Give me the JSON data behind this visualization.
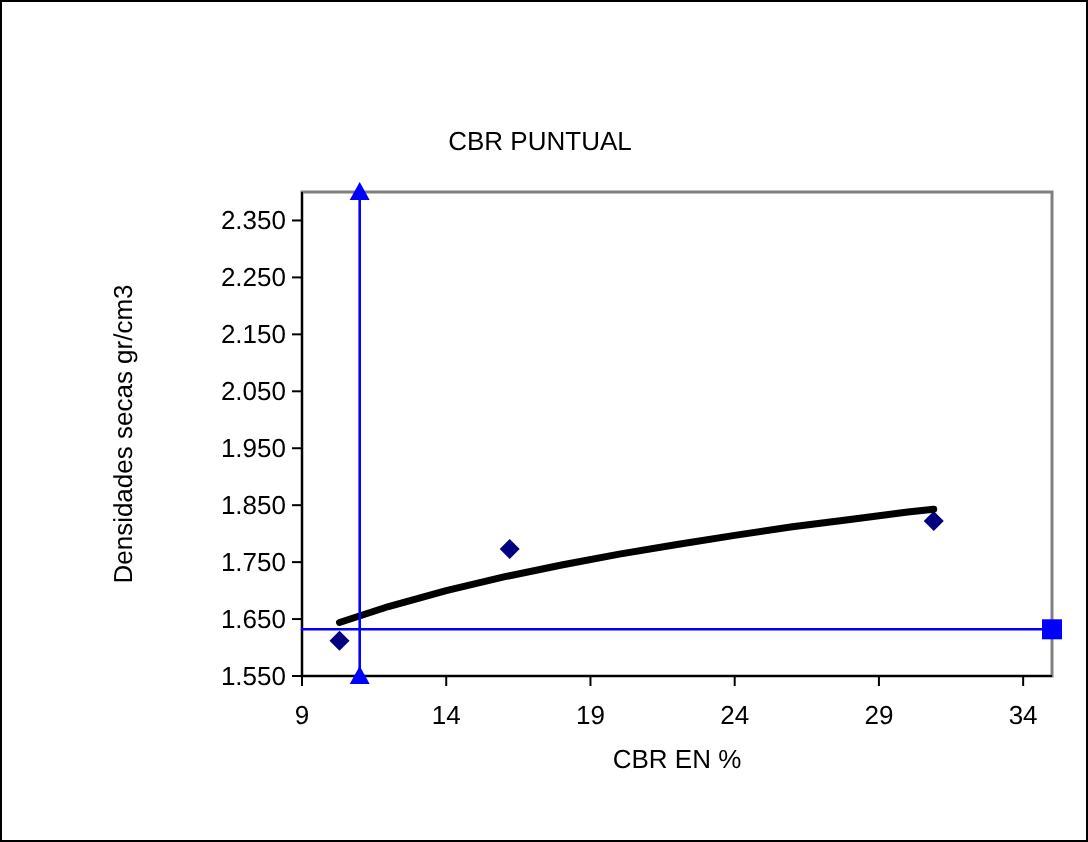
{
  "chart_data": {
    "type": "scatter",
    "title": "CBR PUNTUAL",
    "xlabel": "CBR EN %",
    "ylabel": "Densidades secas gr/cm3",
    "xlim": [
      9,
      35
    ],
    "xticks": [
      9,
      14,
      19,
      24,
      29,
      34
    ],
    "ylim": [
      1.55,
      2.4
    ],
    "yticks": [
      {
        "value": 1.55,
        "label": "1.550"
      },
      {
        "value": 1.65,
        "label": "1.650"
      },
      {
        "value": 1.75,
        "label": "1.750"
      },
      {
        "value": 1.85,
        "label": "1.850"
      },
      {
        "value": 1.95,
        "label": "1.950"
      },
      {
        "value": 2.05,
        "label": "2.050"
      },
      {
        "value": 2.15,
        "label": "2.150"
      },
      {
        "value": 2.25,
        "label": "2.250"
      },
      {
        "value": 2.35,
        "label": "2.350"
      }
    ],
    "grid": false,
    "series": [
      {
        "color": "#000080",
        "marker": "diamond",
        "x": [
          10.3,
          16.2,
          30.9
        ],
        "values": [
          1.612,
          1.773,
          1.822
        ]
      },
      {
        "type": "line",
        "color": "#000000",
        "marker": "none",
        "line_style": "solid",
        "x": [
          10.3,
          12,
          14,
          16,
          18,
          20,
          22,
          24,
          26,
          28,
          30,
          30.9
        ],
        "values": [
          1.644,
          1.672,
          1.7,
          1.724,
          1.745,
          1.764,
          1.781,
          1.797,
          1.812,
          1.825,
          1.838,
          1.843
        ]
      },
      {
        "type": "line",
        "color": "#0000ff",
        "marker": "triangle",
        "line_style": "solid",
        "x": [
          11,
          11
        ],
        "values": [
          1.55,
          2.4
        ]
      },
      {
        "type": "line",
        "color": "#0000ff",
        "marker": "none",
        "line_style": "solid",
        "x": [
          9,
          35
        ],
        "values": [
          1.632,
          1.632
        ]
      },
      {
        "type": "scatter",
        "color": "#0000ff",
        "marker": "square",
        "x": [
          35
        ],
        "values": [
          1.632
        ]
      }
    ]
  }
}
